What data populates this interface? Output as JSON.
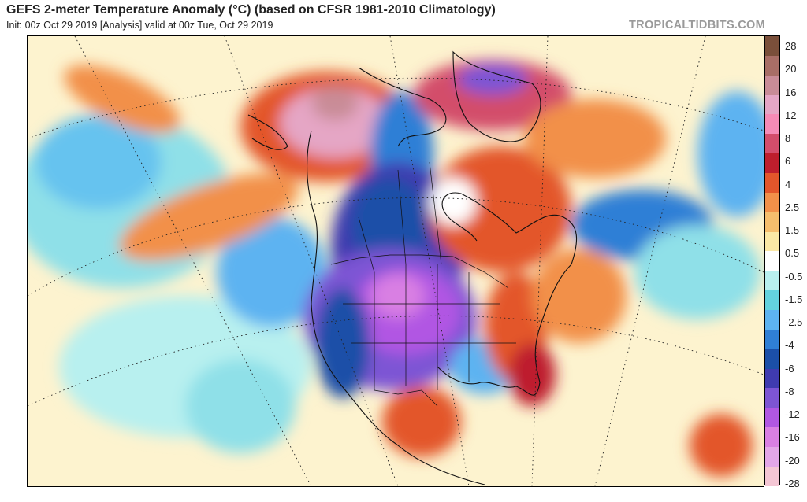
{
  "header": {
    "title": "GEFS 2-meter Temperature Anomaly (°C) (based on CFSR 1981-2010 Climatology)",
    "subtitle": "Init: 00z Oct 29 2019  [Analysis]   valid at 00z Tue, Oct 29 2019",
    "brand": "TROPICALTIDBITS.COM"
  },
  "legend": {
    "units": "°C",
    "labels": [
      "28",
      "20",
      "16",
      "12",
      "8",
      "6",
      "4",
      "2.5",
      "1.5",
      "0.5",
      "-0.5",
      "-1.5",
      "-2.5",
      "-4",
      "-6",
      "-8",
      "-12",
      "-16",
      "-20",
      "-28"
    ],
    "colors": [
      "#7a4f3a",
      "#a86e66",
      "#c98c97",
      "#e5a6c5",
      "#f58bb6",
      "#d34d6b",
      "#be1e2d",
      "#e3562b",
      "#f29049",
      "#f6be6d",
      "#fbe8a5",
      "#ffffff",
      "#b8f0ef",
      "#63d2de",
      "#5db3f1",
      "#2f7fd6",
      "#1b4fa8",
      "#3f3bb0",
      "#7d55d4",
      "#b157e3",
      "#d97fe3",
      "#e3a6e8",
      "#f4c6d4"
    ]
  },
  "map": {
    "region": "North America",
    "features": [
      "cold-anomaly-western-us",
      "warm-anomaly-alaska",
      "warm-anomaly-greenland",
      "warm-anomaly-eastern-us"
    ]
  }
}
